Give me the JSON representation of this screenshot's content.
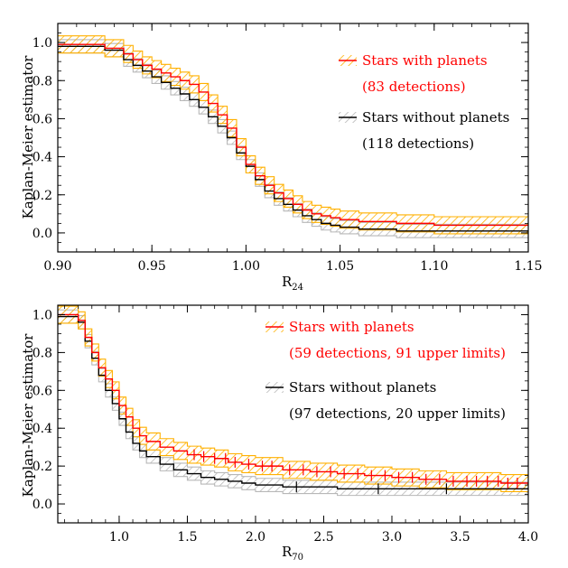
{
  "colors": {
    "with_line": "#ff0000",
    "with_band": "#ffb000",
    "without_line": "#000000",
    "without_band": "#b8b8b8"
  },
  "chart_data": [
    {
      "type": "line",
      "name": "top",
      "xlabel_main": "R",
      "xlabel_sub": "24",
      "ylabel": "Kaplan-Meier estimator",
      "xlim": [
        0.9,
        1.15
      ],
      "ylim": [
        -0.1,
        1.1
      ],
      "xticks": [
        "0.90",
        "0.95",
        "1.00",
        "1.05",
        "1.10",
        "1.15"
      ],
      "xtick_values": [
        0.9,
        0.95,
        1.0,
        1.05,
        1.1,
        1.15
      ],
      "yticks": [
        "0.0",
        "0.2",
        "0.4",
        "0.6",
        "0.8",
        "1.0"
      ],
      "ytick_values": [
        0.0,
        0.2,
        0.4,
        0.6,
        0.8,
        1.0
      ],
      "legend": [
        {
          "label": "Stars with planets",
          "sub": "(83 detections)",
          "color": "#ff0000"
        },
        {
          "label": "Stars without planets",
          "sub": "(118 detections)",
          "color": "#000000"
        }
      ],
      "series": [
        {
          "name": "Stars with planets",
          "band": 0.045,
          "x": [
            0.9,
            0.915,
            0.925,
            0.935,
            0.94,
            0.945,
            0.95,
            0.955,
            0.96,
            0.965,
            0.97,
            0.975,
            0.98,
            0.985,
            0.99,
            0.995,
            1.0,
            1.005,
            1.01,
            1.015,
            1.02,
            1.025,
            1.03,
            1.035,
            1.04,
            1.045,
            1.05,
            1.06,
            1.08,
            1.1,
            1.15
          ],
          "y": [
            0.99,
            0.99,
            0.97,
            0.94,
            0.91,
            0.88,
            0.86,
            0.84,
            0.82,
            0.8,
            0.78,
            0.74,
            0.68,
            0.62,
            0.55,
            0.45,
            0.36,
            0.3,
            0.25,
            0.21,
            0.18,
            0.15,
            0.12,
            0.1,
            0.09,
            0.08,
            0.07,
            0.06,
            0.05,
            0.04,
            0.04
          ]
        },
        {
          "name": "Stars without planets",
          "band": 0.035,
          "x": [
            0.9,
            0.915,
            0.925,
            0.935,
            0.94,
            0.945,
            0.95,
            0.955,
            0.96,
            0.965,
            0.97,
            0.975,
            0.98,
            0.985,
            0.99,
            0.995,
            1.0,
            1.005,
            1.01,
            1.015,
            1.02,
            1.025,
            1.03,
            1.035,
            1.04,
            1.045,
            1.05,
            1.06,
            1.08,
            1.1,
            1.15
          ],
          "y": [
            0.98,
            0.98,
            0.96,
            0.91,
            0.88,
            0.85,
            0.82,
            0.79,
            0.76,
            0.73,
            0.7,
            0.66,
            0.61,
            0.56,
            0.5,
            0.42,
            0.35,
            0.28,
            0.22,
            0.18,
            0.15,
            0.12,
            0.09,
            0.07,
            0.05,
            0.04,
            0.03,
            0.02,
            0.01,
            0.01,
            0.01
          ]
        }
      ]
    },
    {
      "type": "line",
      "name": "bottom",
      "xlabel_main": "R",
      "xlabel_sub": "70",
      "ylabel": "Kaplan-Meier estimator",
      "xlim": [
        0.55,
        4.0
      ],
      "ylim": [
        -0.1,
        1.05
      ],
      "xticks": [
        "1.0",
        "1.5",
        "2.0",
        "2.5",
        "3.0",
        "3.5",
        "4.0"
      ],
      "xtick_values": [
        1.0,
        1.5,
        2.0,
        2.5,
        3.0,
        3.5,
        4.0
      ],
      "yticks": [
        "0.0",
        "0.2",
        "0.4",
        "0.6",
        "0.8",
        "1.0"
      ],
      "ytick_values": [
        0.0,
        0.2,
        0.4,
        0.6,
        0.8,
        1.0
      ],
      "legend": [
        {
          "label": "Stars with planets",
          "sub": "(59 detections, 91 upper limits)",
          "color": "#ff0000"
        },
        {
          "label": "Stars without planets",
          "sub": "(97 detections, 20 upper limits)",
          "color": "#000000"
        }
      ],
      "series": [
        {
          "name": "Stars with planets",
          "band": 0.045,
          "x": [
            0.55,
            0.7,
            0.75,
            0.8,
            0.85,
            0.9,
            0.95,
            1.0,
            1.05,
            1.1,
            1.15,
            1.2,
            1.3,
            1.4,
            1.5,
            1.6,
            1.7,
            1.8,
            1.9,
            2.0,
            2.2,
            2.4,
            2.6,
            2.8,
            3.0,
            3.2,
            3.4,
            3.6,
            3.8,
            4.0
          ],
          "y": [
            1.0,
            0.97,
            0.88,
            0.8,
            0.72,
            0.66,
            0.6,
            0.52,
            0.46,
            0.4,
            0.36,
            0.33,
            0.3,
            0.28,
            0.26,
            0.25,
            0.24,
            0.22,
            0.21,
            0.2,
            0.18,
            0.17,
            0.16,
            0.15,
            0.14,
            0.13,
            0.12,
            0.12,
            0.11,
            0.1
          ],
          "censored": [
            1.55,
            1.62,
            1.7,
            1.78,
            1.85,
            1.95,
            2.05,
            2.12,
            2.25,
            2.35,
            2.45,
            2.55,
            2.65,
            2.75,
            2.85,
            2.95,
            3.05,
            3.15,
            3.25,
            3.35,
            3.45,
            3.55,
            3.62,
            3.7,
            3.78,
            3.85,
            3.92
          ]
        },
        {
          "name": "Stars without planets",
          "band": 0.035,
          "x": [
            0.55,
            0.7,
            0.75,
            0.8,
            0.85,
            0.9,
            0.95,
            1.0,
            1.05,
            1.1,
            1.15,
            1.2,
            1.3,
            1.4,
            1.5,
            1.6,
            1.7,
            1.8,
            1.9,
            2.0,
            2.2,
            2.4,
            2.6,
            2.8,
            3.0,
            3.2,
            3.4,
            3.6,
            3.8,
            4.0
          ],
          "y": [
            0.99,
            0.96,
            0.86,
            0.77,
            0.68,
            0.6,
            0.53,
            0.45,
            0.38,
            0.32,
            0.28,
            0.25,
            0.21,
            0.18,
            0.16,
            0.14,
            0.13,
            0.12,
            0.11,
            0.1,
            0.09,
            0.09,
            0.08,
            0.08,
            0.08,
            0.08,
            0.08,
            0.08,
            0.08,
            0.08
          ],
          "censored": [
            2.3,
            2.9,
            3.4
          ]
        }
      ]
    }
  ]
}
